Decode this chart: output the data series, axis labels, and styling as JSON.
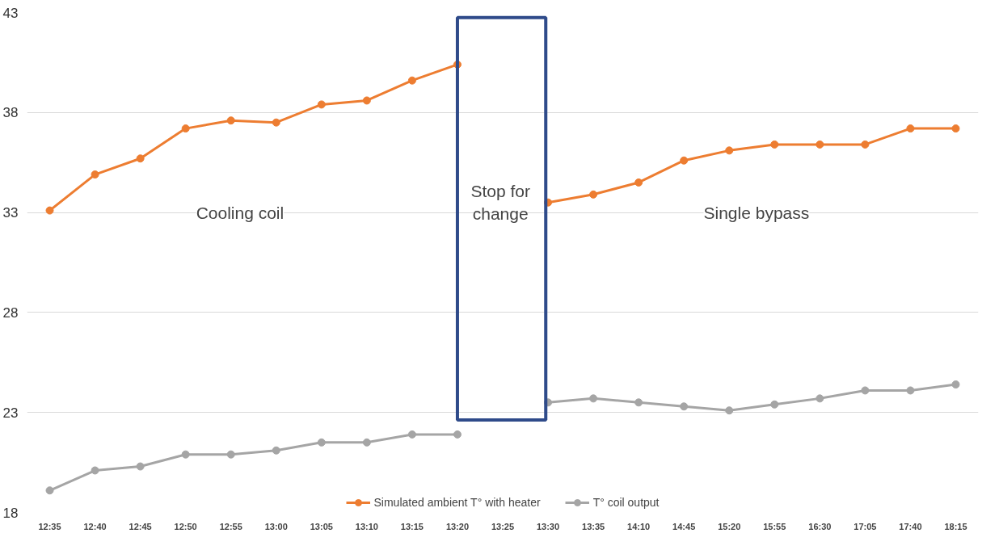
{
  "chart_data": {
    "type": "line",
    "categories": [
      "12:35",
      "12:40",
      "12:45",
      "12:50",
      "12:55",
      "13:00",
      "13:05",
      "13:10",
      "13:15",
      "13:20",
      "13:25",
      "13:30",
      "13:35",
      "14:10",
      "14:45",
      "15:20",
      "15:55",
      "16:30",
      "17:05",
      "17:40",
      "18:15"
    ],
    "series": [
      {
        "name": "Simulated ambient T° with heater",
        "color": "#ed7d31",
        "values": [
          33.1,
          34.9,
          35.7,
          37.2,
          37.6,
          37.5,
          38.4,
          38.6,
          39.6,
          40.4,
          null,
          33.5,
          33.9,
          34.5,
          35.6,
          36.1,
          36.4,
          36.4,
          36.4,
          37.2,
          37.2
        ]
      },
      {
        "name": "T° coil output",
        "color": "#a5a5a5",
        "values": [
          19.1,
          20.1,
          20.3,
          20.9,
          20.9,
          21.1,
          21.5,
          21.5,
          21.9,
          21.9,
          null,
          23.5,
          23.7,
          23.5,
          23.3,
          23.1,
          23.4,
          23.7,
          24.1,
          24.1,
          24.4
        ]
      }
    ],
    "ylim": [
      18,
      43
    ],
    "yticks": [
      18,
      23,
      28,
      33,
      38,
      43
    ],
    "grid": "y",
    "legend": "bottom",
    "marker": "circle",
    "line_style": "solid",
    "annotations": [
      "Cooling coil",
      "Stop for change",
      "Single bypass"
    ]
  }
}
